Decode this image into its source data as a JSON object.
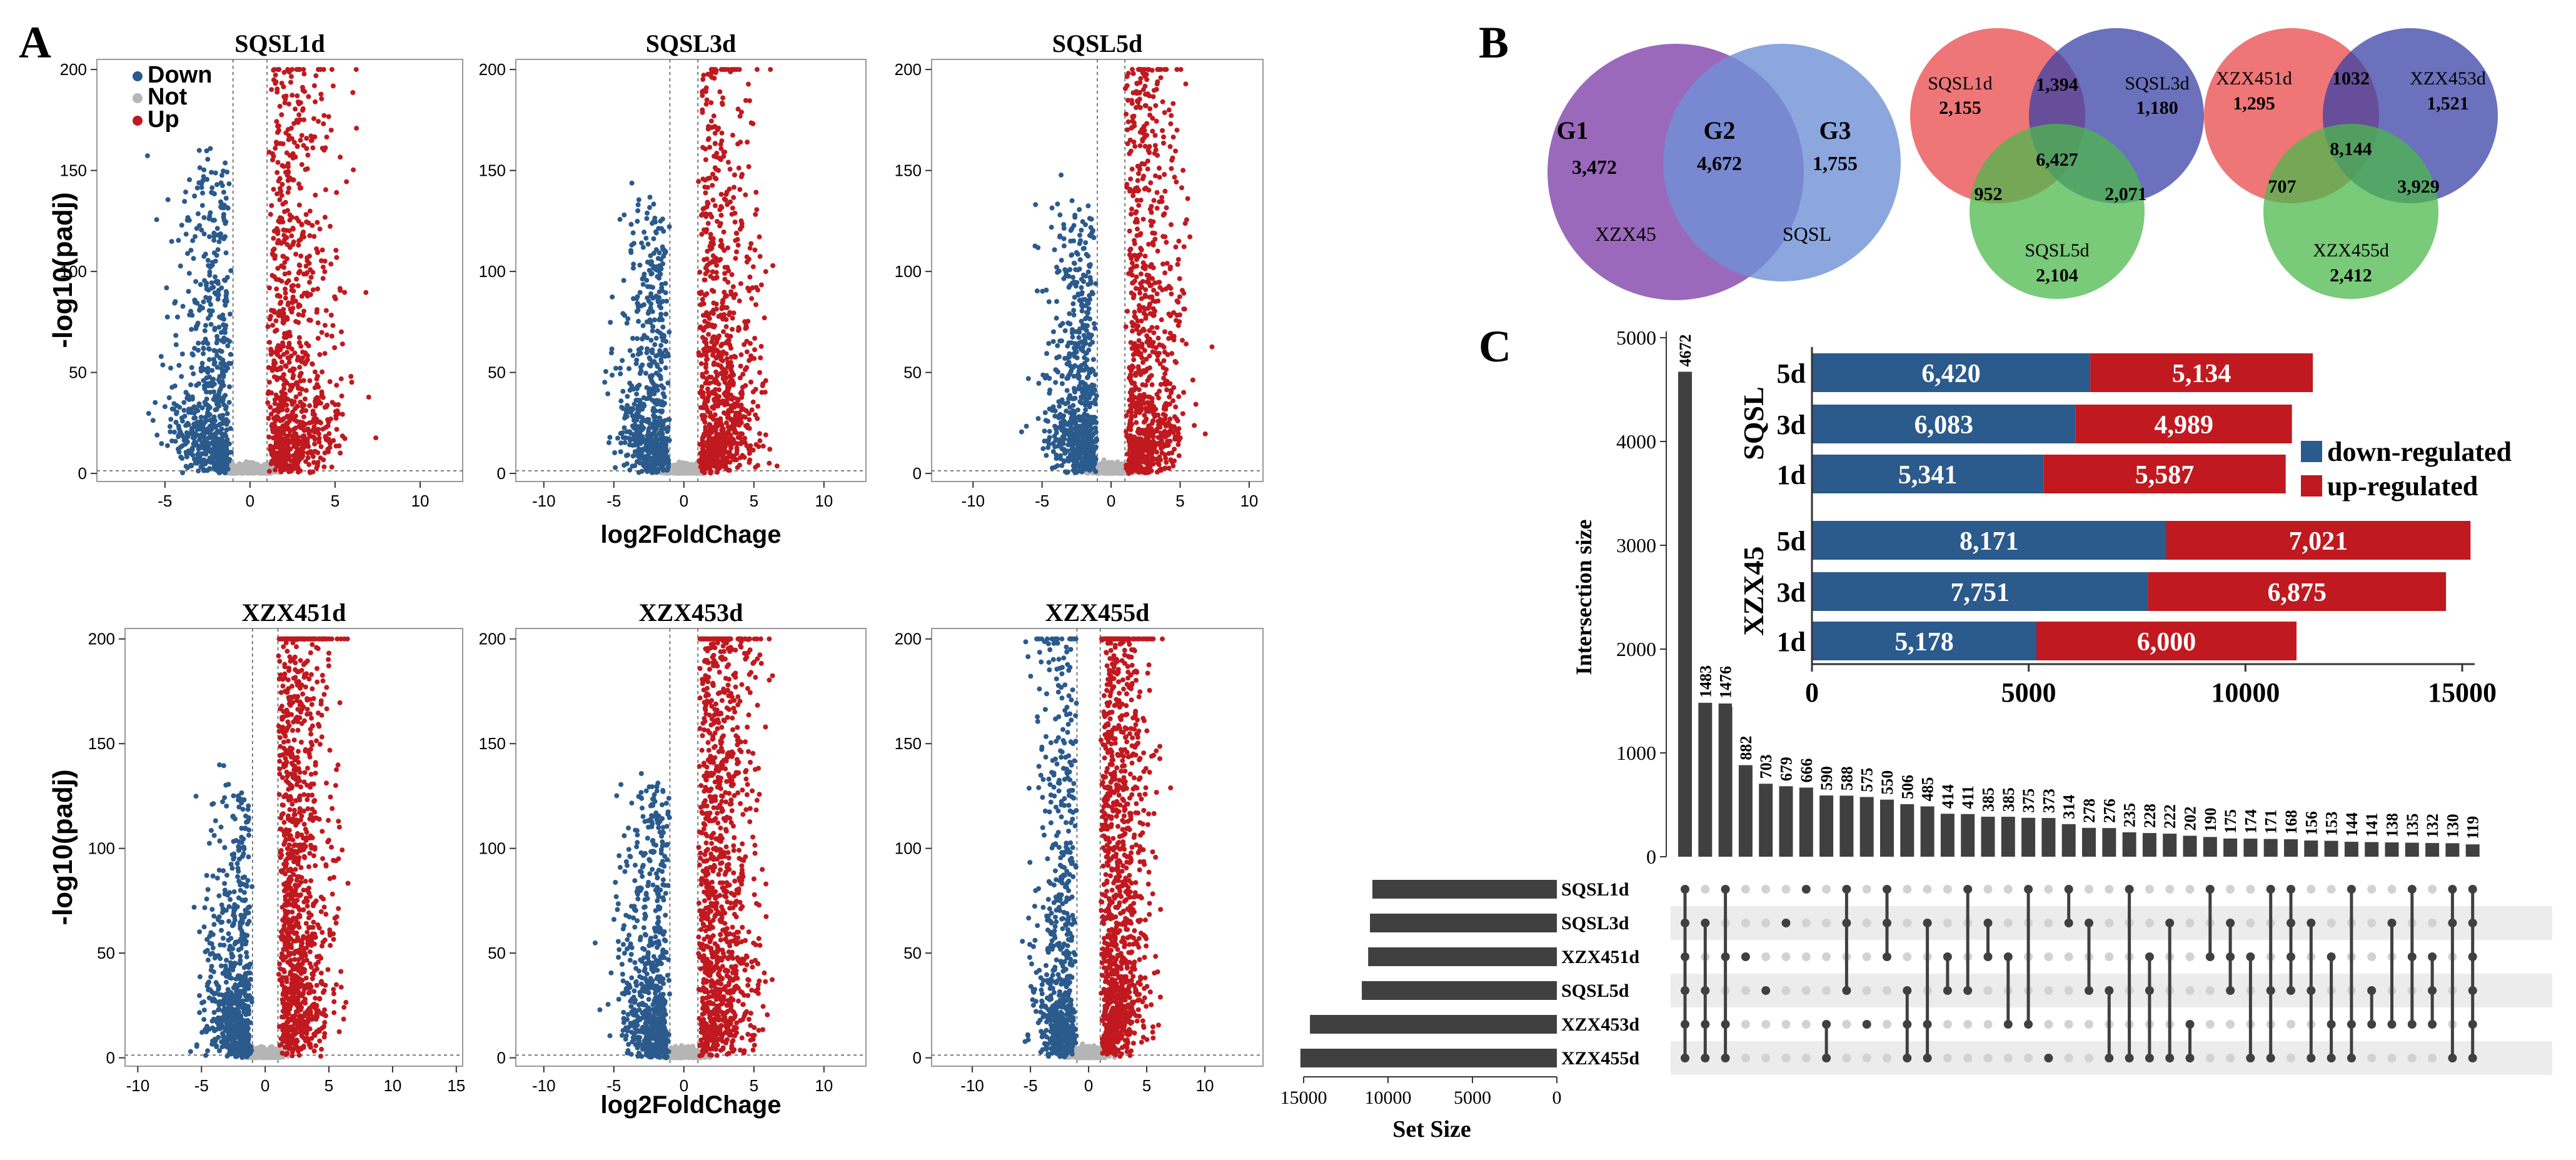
{
  "panel_labels": {
    "a": "A",
    "b": "B",
    "c": "C"
  },
  "colors": {
    "down": "#2b5a8c",
    "not": "#b5b5b5",
    "up": "#c0191f",
    "bar_dark": "#404040",
    "dot_light": "#d2d2d2"
  },
  "volcano": {
    "legend": {
      "down": "Down",
      "not": "Not",
      "up": "Up"
    },
    "ylabel": "-log10(padj)",
    "xlabel": "log2FoldChage",
    "yticks": [
      "0",
      "50",
      "100",
      "150",
      "200"
    ],
    "plots": [
      {
        "title": "SQSL1d",
        "xticks": [
          "-5",
          "0",
          "5",
          "10"
        ],
        "xmin": -9,
        "xmax": 12.5
      },
      {
        "title": "SQSL3d",
        "xticks": [
          "-10",
          "-5",
          "0",
          "5",
          "10"
        ],
        "xmin": -12,
        "xmax": 13
      },
      {
        "title": "SQSL5d",
        "xticks": [
          "-10",
          "-5",
          "0",
          "5",
          "10"
        ],
        "xmin": -13,
        "xmax": 11
      },
      {
        "title": "XZX451d",
        "xticks": [
          "-10",
          "-5",
          "0",
          "5",
          "10",
          "15"
        ],
        "xmin": -11,
        "xmax": 15.5
      },
      {
        "title": "XZX453d",
        "xticks": [
          "-10",
          "-5",
          "0",
          "5",
          "10"
        ],
        "xmin": -12,
        "xmax": 13
      },
      {
        "title": "XZX455d",
        "xticks": [
          "-10",
          "-5",
          "0",
          "5",
          "10"
        ],
        "xmin": -13.5,
        "xmax": 15
      }
    ]
  },
  "venn1": {
    "g1_name": "G1",
    "g1_value": "3,472",
    "g2_name": "G2",
    "g2_value": "4,672",
    "g3_name": "G3",
    "g3_value": "1,755",
    "left_set": "XZX45",
    "right_set": "SQSL"
  },
  "venn2": {
    "a": "SQSL1d",
    "a_val": "2,155",
    "b": "SQSL3d",
    "b_val": "1,180",
    "c": "SQSL5d",
    "c_val": "2,104",
    "ab": "1,394",
    "ac": "952",
    "bc": "2,071",
    "abc": "6,427"
  },
  "venn3": {
    "a": "XZX451d",
    "a_val": "1,295",
    "b": "XZX453d",
    "b_val": "1,521",
    "c": "XZX455d",
    "c_val": "2,412",
    "ab": "1032",
    "ac": "707",
    "bc": "3,929",
    "abc": "8,144"
  },
  "chart_data": [
    {
      "type": "bar",
      "title": "Intersection size",
      "ylabel": "Intersection size",
      "ylim": [
        0,
        5000
      ],
      "yticks": [
        "0",
        "1000",
        "2000",
        "3000",
        "4000",
        "5000"
      ],
      "values": [
        4672,
        1483,
        1476,
        882,
        703,
        679,
        666,
        590,
        588,
        575,
        550,
        506,
        485,
        414,
        411,
        385,
        385,
        375,
        373,
        314,
        278,
        276,
        235,
        228,
        222,
        202,
        190,
        175,
        174,
        171,
        168,
        156,
        153,
        144,
        141,
        138,
        135,
        132,
        130,
        119
      ],
      "sets_order": [
        "SQSL1d",
        "SQSL3d",
        "XZX451d",
        "SQSL5d",
        "XZX453d",
        "XZX455d"
      ],
      "membership": [
        [
          0,
          1,
          2,
          3,
          4,
          5
        ],
        [
          1,
          3,
          4,
          5
        ],
        [
          0,
          2,
          4,
          5
        ],
        [
          2
        ],
        [
          3
        ],
        [
          1
        ],
        [
          0
        ],
        [
          4,
          5
        ],
        [
          0,
          1,
          3
        ],
        [
          4
        ],
        [
          0,
          1,
          2
        ],
        [
          3,
          4,
          5
        ],
        [
          1,
          4,
          5
        ],
        [
          2,
          3
        ],
        [
          0,
          3
        ],
        [
          1,
          2
        ],
        [
          2,
          4
        ],
        [
          0,
          4
        ],
        [
          5
        ],
        [
          0,
          1
        ],
        [
          1,
          3
        ],
        [
          3,
          5
        ],
        [
          0,
          5
        ],
        [
          2,
          3,
          5
        ],
        [
          1,
          5
        ],
        [
          4,
          5
        ],
        [
          0,
          2
        ],
        [
          1,
          2,
          3
        ],
        [
          2,
          5
        ],
        [
          0,
          3,
          5
        ],
        [
          0,
          1,
          2,
          3
        ],
        [
          1,
          3,
          5
        ],
        [
          2,
          4,
          5
        ],
        [
          0,
          4,
          5
        ],
        [
          3,
          4
        ],
        [
          1,
          4
        ],
        [
          0,
          2,
          4
        ],
        [
          2,
          3,
          4
        ],
        [
          0,
          1,
          5
        ],
        [
          0,
          1,
          2,
          3,
          4,
          5
        ]
      ]
    },
    {
      "type": "bar",
      "title": "Set Size",
      "xlabel": "Set Size",
      "xticks": [
        "15000",
        "10000",
        "5000",
        "0"
      ],
      "categories": [
        "SQSL1d",
        "SQSL3d",
        "XZX451d",
        "SQSL5d",
        "XZX453d",
        "XZX455d"
      ],
      "values": [
        10928,
        11072,
        11178,
        11554,
        14626,
        15192
      ]
    },
    {
      "type": "bar",
      "stacked": true,
      "orientation": "horizontal",
      "groups": [
        {
          "name": "SQSL",
          "rows": [
            {
              "label": "5d",
              "down": 6420,
              "up": 5134,
              "down_text": "6,420",
              "up_text": "5,134"
            },
            {
              "label": "3d",
              "down": 6083,
              "up": 4989,
              "down_text": "6,083",
              "up_text": "4,989"
            },
            {
              "label": "1d",
              "down": 5341,
              "up": 5587,
              "down_text": "5,341",
              "up_text": "5,587"
            }
          ]
        },
        {
          "name": "XZX45",
          "rows": [
            {
              "label": "5d",
              "down": 8171,
              "up": 7021,
              "down_text": "8,171",
              "up_text": "7,021"
            },
            {
              "label": "3d",
              "down": 7751,
              "up": 6875,
              "down_text": "7,751",
              "up_text": "6,875"
            },
            {
              "label": "1d",
              "down": 5178,
              "up": 6000,
              "down_text": "5,178",
              "up_text": "6,000"
            }
          ]
        }
      ],
      "xticks": [
        "0",
        "5000",
        "10000",
        "15000"
      ],
      "xlim": [
        0,
        15000
      ],
      "legend": {
        "down": "down-regulated",
        "up": "up-regulated"
      }
    }
  ]
}
